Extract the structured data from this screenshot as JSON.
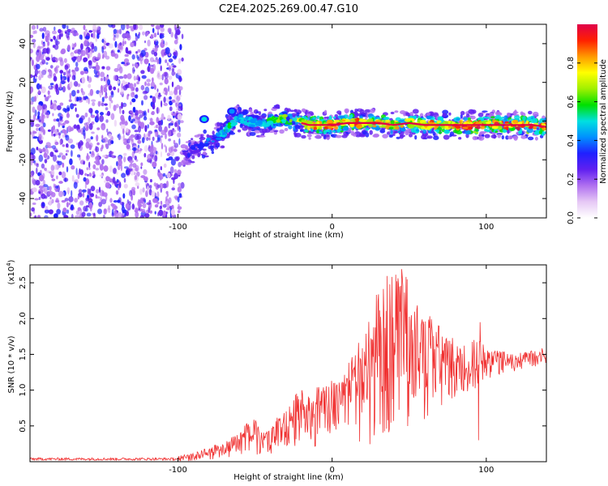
{
  "title": "C2E4.2025.269.00.47.G10",
  "chart_data": [
    {
      "type": "heatmap",
      "xlabel": "Height of straight line (km)",
      "ylabel": "Frequency (Hz)",
      "xlim": [
        -196,
        139
      ],
      "ylim": [
        -50,
        50
      ],
      "xticks": [
        -100,
        0,
        100
      ],
      "yticks": [
        -40,
        -20,
        0,
        20,
        40
      ],
      "grid": false,
      "noise_region": {
        "x": [
          -196,
          -97
        ],
        "y": [
          -50,
          50
        ]
      },
      "ridge": {
        "x": [
          -97,
          -90,
          -85,
          -80,
          -75,
          -70,
          -66,
          -60,
          -55,
          -50,
          -45,
          -40,
          -35,
          -30,
          -25,
          -20,
          -15,
          -10,
          0,
          10,
          20,
          30,
          40,
          50,
          60,
          70,
          80,
          90,
          100,
          110,
          120,
          130,
          139
        ],
        "y": [
          -18,
          -15,
          -13,
          -11,
          -9,
          -6,
          -2,
          2,
          0,
          -1,
          -1,
          0,
          1,
          1,
          0,
          -1,
          -2,
          -2,
          -2,
          -1,
          -1,
          -1,
          -2,
          -1,
          -2,
          -2,
          -2,
          -2,
          -2,
          -2,
          -2,
          -2,
          -3
        ],
        "amp": [
          0.3,
          0.35,
          0.4,
          0.45,
          0.5,
          0.55,
          0.6,
          0.6,
          0.55,
          0.55,
          0.6,
          0.65,
          0.7,
          0.7,
          0.75,
          0.8,
          0.9,
          0.95,
          1.0,
          1.0,
          0.95,
          0.9,
          0.85,
          0.85,
          0.9,
          0.95,
          1.0,
          1.0,
          1.0,
          1.0,
          1.0,
          1.0,
          0.95
        ]
      },
      "islands": [
        {
          "x": -83,
          "y": 1,
          "amp": 0.5
        },
        {
          "x": -65,
          "y": 5,
          "amp": 0.45
        }
      ],
      "colorbar": {
        "label": "Normalized spectral amplitude",
        "range": [
          0,
          1
        ],
        "ticks": [
          0.0,
          0.2,
          0.4,
          0.6,
          0.8
        ],
        "tick_labels": [
          "0.0",
          "0.2",
          "0.4",
          "0.6",
          "0.8"
        ],
        "colors": [
          "#ffffff",
          "#e6c8f5",
          "#b070f0",
          "#6020f0",
          "#2020ff",
          "#0090ff",
          "#00e0e0",
          "#00e000",
          "#a0f000",
          "#ffff00",
          "#ff9900",
          "#ff2000",
          "#e0004a"
        ]
      }
    },
    {
      "type": "line",
      "xlabel": "Height of straight line (km)",
      "ylabel": "SNR (10 * v/v)",
      "y_multiplier": "(x10",
      "y_multiplier_exp": "4",
      "xlim": [
        -196,
        139
      ],
      "ylim": [
        0,
        2.75
      ],
      "xticks": [
        -100,
        0,
        100
      ],
      "yticks": [
        0.5,
        1.0,
        1.5,
        2.0,
        2.5
      ],
      "ytick_labels": [
        "0.5",
        "1.0",
        "1.5",
        "2.0",
        "2.5"
      ],
      "grid": false,
      "line_color": "#f03030",
      "envelope": {
        "x": [
          -196,
          -120,
          -100,
          -90,
          -80,
          -70,
          -60,
          -55,
          -50,
          -45,
          -40,
          -35,
          -30,
          -25,
          -20,
          -15,
          -10,
          -5,
          0,
          5,
          10,
          15,
          20,
          25,
          30,
          35,
          40,
          45,
          50,
          55,
          60,
          65,
          70,
          75,
          80,
          85,
          90,
          95,
          100,
          105,
          110,
          115,
          120,
          125,
          130,
          139
        ],
        "upper": [
          0.05,
          0.06,
          0.08,
          0.12,
          0.2,
          0.28,
          0.45,
          0.55,
          0.6,
          0.4,
          0.45,
          0.65,
          0.7,
          0.9,
          1.05,
          0.95,
          1.1,
          1.1,
          1.15,
          1.2,
          1.35,
          1.6,
          1.9,
          2.2,
          2.4,
          2.6,
          2.6,
          2.7,
          2.5,
          2.4,
          2.1,
          2.0,
          2.0,
          1.8,
          1.7,
          1.6,
          1.75,
          1.7,
          1.6,
          1.55,
          1.55,
          1.5,
          1.5,
          1.55,
          1.55,
          1.6
        ],
        "lower": [
          0.0,
          0.0,
          0.0,
          0.0,
          0.02,
          0.03,
          0.05,
          0.08,
          0.08,
          0.05,
          0.05,
          0.1,
          0.12,
          0.15,
          0.2,
          0.2,
          0.2,
          0.25,
          0.3,
          0.35,
          0.3,
          0.25,
          0.2,
          0.15,
          0.15,
          0.15,
          0.15,
          0.2,
          0.2,
          0.3,
          0.4,
          0.5,
          0.6,
          0.7,
          0.8,
          0.85,
          0.9,
          1.0,
          1.1,
          1.15,
          1.2,
          1.2,
          1.25,
          1.25,
          1.3,
          1.3
        ]
      },
      "spikes": [
        {
          "x": 95,
          "y": 0.3
        },
        {
          "x": 96,
          "y": 1.95
        }
      ]
    }
  ]
}
